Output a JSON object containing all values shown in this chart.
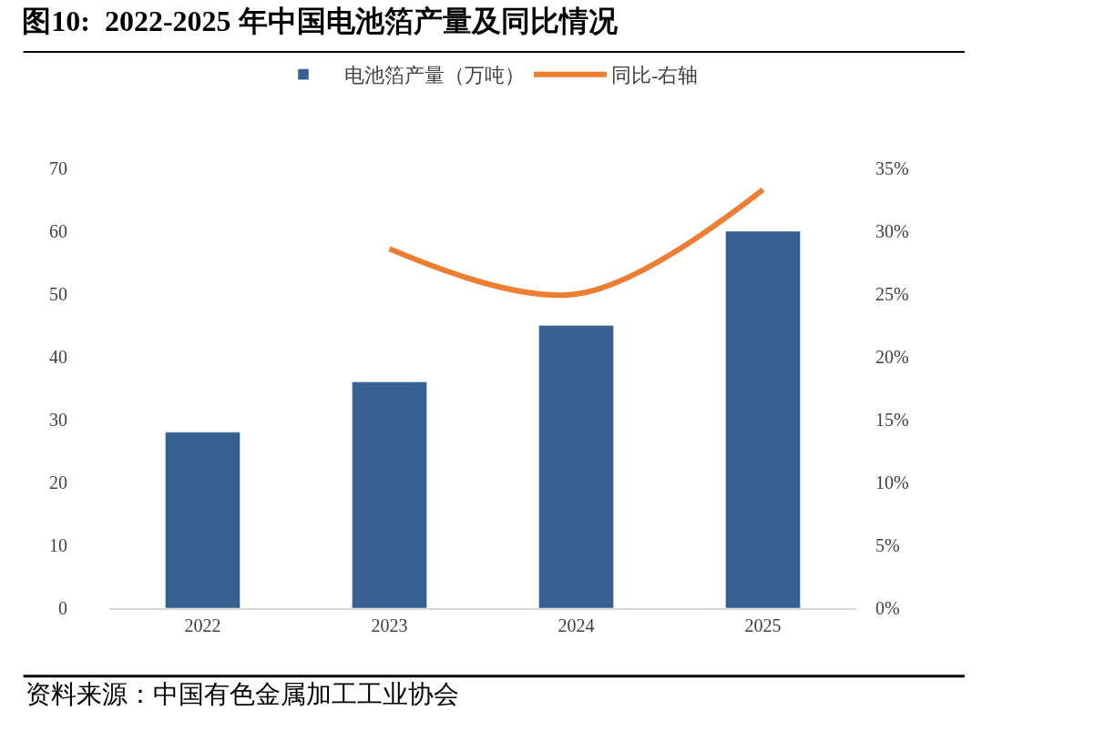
{
  "chart_data": {
    "type": "bar",
    "title": "图10:  2022-2025 年中国电池箔产量及同比情况",
    "categories": [
      "2022",
      "2023",
      "2024",
      "2025"
    ],
    "series": [
      {
        "name": "电池箔产量（万吨）",
        "color": "#36608f",
        "values": [
          28,
          36,
          45,
          60
        ]
      },
      {
        "name": "同比-右轴",
        "type": "line",
        "axis": "y2",
        "color": "#ed7d31",
        "values": [
          null,
          28.6,
          25,
          33.3
        ]
      }
    ],
    "ylim": [
      0,
      70
    ],
    "yticks": [
      0,
      10,
      20,
      30,
      40,
      50,
      60,
      70
    ],
    "y2lim": [
      0,
      35
    ],
    "y2ticks": [
      {
        "value": 0,
        "label": "0%"
      },
      {
        "value": 5,
        "label": "5%"
      },
      {
        "value": 10,
        "label": "10%"
      },
      {
        "value": 15,
        "label": "15%"
      },
      {
        "value": 20,
        "label": "20%"
      },
      {
        "value": 25,
        "label": "25%"
      },
      {
        "value": 30,
        "label": "30%"
      },
      {
        "value": 35,
        "label": "35%"
      }
    ],
    "legend": "top",
    "marker": "none",
    "line_style": "solid",
    "annotations": [
      "资料来源：中国有色金属加工工业协会"
    ]
  }
}
